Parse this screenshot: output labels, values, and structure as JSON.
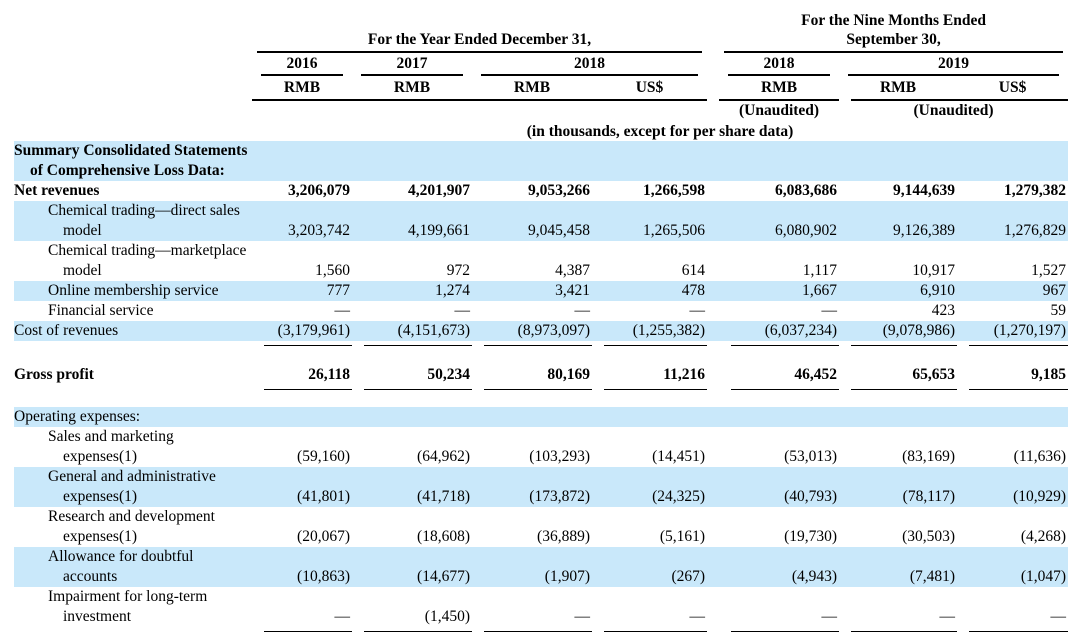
{
  "page": {
    "background": "#ffffff",
    "stripe_color": "#C9E8FA",
    "text_color": "#000000"
  },
  "header": {
    "year_group": {
      "title": "For the Year Ended December 31,"
    },
    "nine_month_group": {
      "title_line1": "For the Nine Months Ended",
      "title_line2": "September 30,"
    },
    "year_columns": [
      "2016",
      "2017",
      "2018"
    ],
    "nine_month_columns": [
      "2018",
      "2019"
    ],
    "currency_row": [
      "RMB",
      "RMB",
      "RMB",
      "US$",
      "RMB",
      "RMB",
      "US$"
    ],
    "unaudited_2018": "(Unaudited)",
    "unaudited_2019": "(Unaudited)",
    "units_note": "(in thousands, except for per share data)"
  },
  "table": {
    "rows": [
      {
        "type": "row",
        "label_lines": [
          "Summary Consolidated Statements",
          "of Comprehensive Loss Data:"
        ],
        "indent": 0,
        "bold": true,
        "shade": true,
        "values": null,
        "rule_after": false
      },
      {
        "type": "row",
        "label_lines": [
          "Net revenues"
        ],
        "indent": 0,
        "bold": true,
        "shade": false,
        "values": [
          "3,206,079",
          "4,201,907",
          "9,053,266",
          "1,266,598",
          "6,083,686",
          "9,144,639",
          "1,279,382"
        ],
        "rule_after": false
      },
      {
        "type": "row",
        "label_lines": [
          "Chemical trading—direct sales",
          "model"
        ],
        "indent": 1,
        "bold": false,
        "shade": true,
        "values": [
          "3,203,742",
          "4,199,661",
          "9,045,458",
          "1,265,506",
          "6,080,902",
          "9,126,389",
          "1,276,829"
        ],
        "rule_after": false
      },
      {
        "type": "row",
        "label_lines": [
          "Chemical trading—marketplace",
          "model"
        ],
        "indent": 1,
        "bold": false,
        "shade": false,
        "values": [
          "1,560",
          "972",
          "4,387",
          "614",
          "1,117",
          "10,917",
          "1,527"
        ],
        "rule_after": false
      },
      {
        "type": "row",
        "label_lines": [
          "Online membership service"
        ],
        "indent": 1,
        "bold": false,
        "shade": true,
        "values": [
          "777",
          "1,274",
          "3,421",
          "478",
          "1,667",
          "6,910",
          "967"
        ],
        "rule_after": false
      },
      {
        "type": "row",
        "label_lines": [
          "Financial service"
        ],
        "indent": 1,
        "bold": false,
        "shade": false,
        "values": [
          "—",
          "—",
          "—",
          "—",
          "—",
          "423",
          "59"
        ],
        "rule_after": false
      },
      {
        "type": "row",
        "label_lines": [
          "Cost of revenues"
        ],
        "indent": 0,
        "bold": false,
        "shade": true,
        "values": [
          "(3,179,961)",
          "(4,151,673)",
          "(8,973,097)",
          "(1,255,382)",
          "(6,037,234)",
          "(9,078,986)",
          "(1,270,197)"
        ],
        "rule_after": true
      },
      {
        "type": "spacer",
        "height": 15
      },
      {
        "type": "row",
        "label_lines": [
          "Gross profit"
        ],
        "indent": 0,
        "bold": true,
        "shade": false,
        "values": [
          "26,118",
          "50,234",
          "80,169",
          "11,216",
          "46,452",
          "65,653",
          "9,185"
        ],
        "rule_after": true,
        "height": 24
      },
      {
        "type": "spacer",
        "height": 17
      },
      {
        "type": "row",
        "label_lines": [
          "Operating expenses:"
        ],
        "indent": 0,
        "bold": false,
        "shade": true,
        "values": null,
        "rule_after": false
      },
      {
        "type": "row",
        "label_lines": [
          "Sales and marketing",
          "expenses(1)"
        ],
        "indent": 1,
        "bold": false,
        "shade": false,
        "values": [
          "(59,160)",
          "(64,962)",
          "(103,293)",
          "(14,451)",
          "(53,013)",
          "(83,169)",
          "(11,636)"
        ],
        "rule_after": false
      },
      {
        "type": "row",
        "label_lines": [
          "General and administrative",
          "expenses(1)"
        ],
        "indent": 1,
        "bold": false,
        "shade": true,
        "values": [
          "(41,801)",
          "(41,718)",
          "(173,872)",
          "(24,325)",
          "(40,793)",
          "(78,117)",
          "(10,929)"
        ],
        "rule_after": false
      },
      {
        "type": "row",
        "label_lines": [
          "Research and development",
          "expenses(1)"
        ],
        "indent": 1,
        "bold": false,
        "shade": false,
        "values": [
          "(20,067)",
          "(18,608)",
          "(36,889)",
          "(5,161)",
          "(19,730)",
          "(30,503)",
          "(4,268)"
        ],
        "rule_after": false
      },
      {
        "type": "row",
        "label_lines": [
          "Allowance for doubtful",
          "accounts"
        ],
        "indent": 1,
        "bold": false,
        "shade": true,
        "values": [
          "(10,863)",
          "(14,677)",
          "(1,907)",
          "(267)",
          "(4,943)",
          "(7,481)",
          "(1,047)"
        ],
        "rule_after": false
      },
      {
        "type": "row",
        "label_lines": [
          "Impairment for long-term",
          "investment"
        ],
        "indent": 1,
        "bold": false,
        "shade": false,
        "values": [
          "—",
          "(1,450)",
          "—",
          "—",
          "—",
          "—",
          "—"
        ],
        "rule_after": true
      }
    ]
  }
}
